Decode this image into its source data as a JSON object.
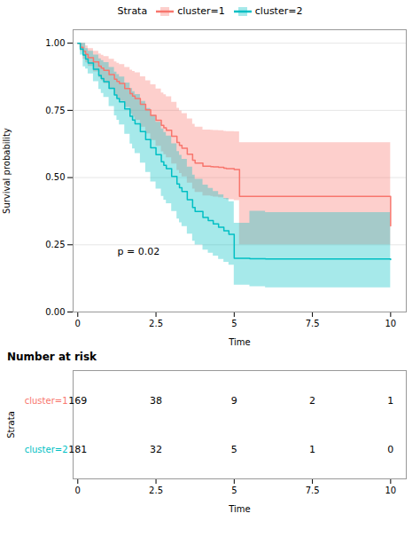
{
  "chart_data": [
    {
      "type": "step",
      "xlabel": "Time",
      "ylabel": "Survival probability",
      "legend_title": "Strata",
      "legend": "top",
      "grid": "y",
      "xlim": [
        -0.15,
        10.5
      ],
      "xticks": [
        0,
        2.5,
        5,
        7.5,
        10
      ],
      "ylim": [
        0.0,
        1.05
      ],
      "yticks": [
        {
          "value": 0.0,
          "label": "0.00"
        },
        {
          "value": 0.25,
          "label": "0.25"
        },
        {
          "value": 0.5,
          "label": "0.50"
        },
        {
          "value": 0.75,
          "label": "0.75"
        },
        {
          "value": 1.0,
          "label": "1.00"
        }
      ],
      "annotations": [
        {
          "text": "p = 0.02"
        }
      ],
      "series": [
        {
          "name": "cluster=1",
          "color": "#F8766D",
          "x": [
            0,
            0.08,
            0.17,
            0.25,
            0.33,
            0.5,
            0.67,
            0.75,
            0.83,
            1.0,
            1.17,
            1.25,
            1.33,
            1.5,
            1.67,
            1.75,
            1.83,
            2.0,
            2.17,
            2.33,
            2.5,
            2.67,
            2.75,
            2.83,
            3.0,
            3.17,
            3.25,
            3.33,
            3.5,
            3.67,
            3.75,
            4.0,
            4.17,
            4.25,
            4.33,
            4.5,
            4.67,
            4.75,
            5.0,
            5.17,
            10.0
          ],
          "values": [
            1.0,
            0.985,
            0.97,
            0.958,
            0.946,
            0.93,
            0.915,
            0.907,
            0.899,
            0.883,
            0.866,
            0.858,
            0.85,
            0.831,
            0.812,
            0.803,
            0.794,
            0.773,
            0.752,
            0.731,
            0.713,
            0.694,
            0.685,
            0.676,
            0.654,
            0.631,
            0.62,
            0.609,
            0.587,
            0.565,
            0.554,
            0.542,
            0.542,
            0.541,
            0.54,
            0.538,
            0.535,
            0.533,
            0.53,
            0.43,
            0.32
          ],
          "upper": [
            1.0,
            1.0,
            1.0,
            0.99,
            0.98,
            0.97,
            0.96,
            0.955,
            0.95,
            0.94,
            0.93,
            0.925,
            0.92,
            0.91,
            0.9,
            0.895,
            0.89,
            0.875,
            0.86,
            0.845,
            0.83,
            0.815,
            0.808,
            0.801,
            0.78,
            0.758,
            0.748,
            0.738,
            0.718,
            0.698,
            0.688,
            0.677,
            0.677,
            0.676,
            0.675,
            0.674,
            0.672,
            0.671,
            0.67,
            0.63,
            0.62
          ],
          "lower": [
            1.0,
            0.97,
            0.94,
            0.927,
            0.914,
            0.893,
            0.872,
            0.86,
            0.849,
            0.828,
            0.806,
            0.795,
            0.784,
            0.761,
            0.737,
            0.725,
            0.713,
            0.688,
            0.663,
            0.638,
            0.617,
            0.596,
            0.585,
            0.574,
            0.551,
            0.527,
            0.515,
            0.503,
            0.48,
            0.457,
            0.445,
            0.432,
            0.432,
            0.43,
            0.428,
            0.425,
            0.42,
            0.418,
            0.414,
            0.25,
            0.05
          ]
        },
        {
          "name": "cluster=2",
          "color": "#00BFC4",
          "x": [
            0,
            0.08,
            0.17,
            0.25,
            0.33,
            0.5,
            0.67,
            0.75,
            0.83,
            1.0,
            1.17,
            1.25,
            1.33,
            1.5,
            1.67,
            1.75,
            1.83,
            2.0,
            2.17,
            2.33,
            2.5,
            2.67,
            2.75,
            2.83,
            3.0,
            3.17,
            3.25,
            3.33,
            3.5,
            3.67,
            3.75,
            4.0,
            4.17,
            4.33,
            4.5,
            4.67,
            4.83,
            5.0,
            5.5,
            6.0,
            10.0
          ],
          "values": [
            1.0,
            0.978,
            0.956,
            0.941,
            0.926,
            0.903,
            0.88,
            0.868,
            0.857,
            0.832,
            0.807,
            0.794,
            0.782,
            0.755,
            0.728,
            0.714,
            0.7,
            0.671,
            0.641,
            0.611,
            0.585,
            0.559,
            0.546,
            0.533,
            0.504,
            0.476,
            0.462,
            0.448,
            0.418,
            0.389,
            0.374,
            0.352,
            0.34,
            0.328,
            0.315,
            0.302,
            0.289,
            0.2,
            0.198,
            0.197,
            0.195
          ],
          "upper": [
            1.0,
            1.0,
            1.0,
            0.98,
            0.97,
            0.956,
            0.942,
            0.935,
            0.928,
            0.91,
            0.892,
            0.883,
            0.874,
            0.852,
            0.831,
            0.82,
            0.809,
            0.783,
            0.757,
            0.731,
            0.706,
            0.681,
            0.668,
            0.655,
            0.626,
            0.597,
            0.583,
            0.568,
            0.539,
            0.509,
            0.494,
            0.472,
            0.46,
            0.448,
            0.436,
            0.423,
            0.41,
            0.33,
            0.375,
            0.37,
            0.38
          ],
          "lower": [
            1.0,
            0.956,
            0.912,
            0.904,
            0.886,
            0.857,
            0.828,
            0.813,
            0.798,
            0.764,
            0.73,
            0.713,
            0.696,
            0.661,
            0.625,
            0.607,
            0.589,
            0.554,
            0.519,
            0.484,
            0.457,
            0.43,
            0.416,
            0.403,
            0.374,
            0.346,
            0.332,
            0.318,
            0.29,
            0.263,
            0.249,
            0.23,
            0.219,
            0.208,
            0.196,
            0.185,
            0.174,
            0.1,
            0.094,
            0.09,
            0.095
          ]
        }
      ]
    },
    {
      "type": "table",
      "title": "Number at risk",
      "xlabel": "Time",
      "ylabel": "Strata",
      "xlim": [
        -0.15,
        10.5
      ],
      "xticks": [
        0,
        2.5,
        5,
        7.5,
        10
      ],
      "x": [
        0,
        2.5,
        5,
        7.5,
        10
      ],
      "data_labels": true,
      "series": [
        {
          "name": "cluster=1",
          "color": "#F8766D",
          "values": [
            169,
            38,
            9,
            2,
            1
          ]
        },
        {
          "name": "cluster=2",
          "color": "#00BFC4",
          "values": [
            181,
            32,
            5,
            1,
            0
          ]
        }
      ]
    }
  ]
}
